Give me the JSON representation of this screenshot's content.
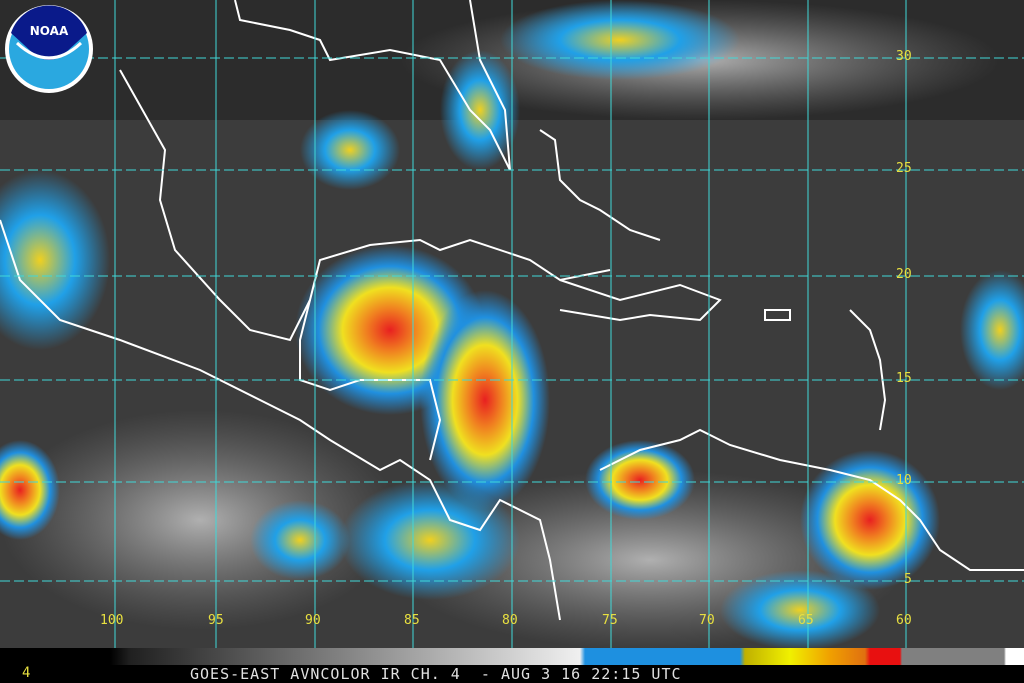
{
  "logo": {
    "text": "NOAA"
  },
  "footer": {
    "channel_number": "4",
    "title": "GOES-EAST AVNCOLOR IR CH. 4  - AUG 3 16 22:15 UTC"
  },
  "grid": {
    "longitudes": [
      "100",
      "95",
      "90",
      "85",
      "80",
      "75",
      "70",
      "65",
      "60"
    ],
    "latitudes": [
      "30",
      "25",
      "20",
      "15",
      "10",
      "5"
    ]
  },
  "colors": {
    "grid": "#40d8d8",
    "coast": "#ffffff",
    "label": "#e8e040"
  }
}
